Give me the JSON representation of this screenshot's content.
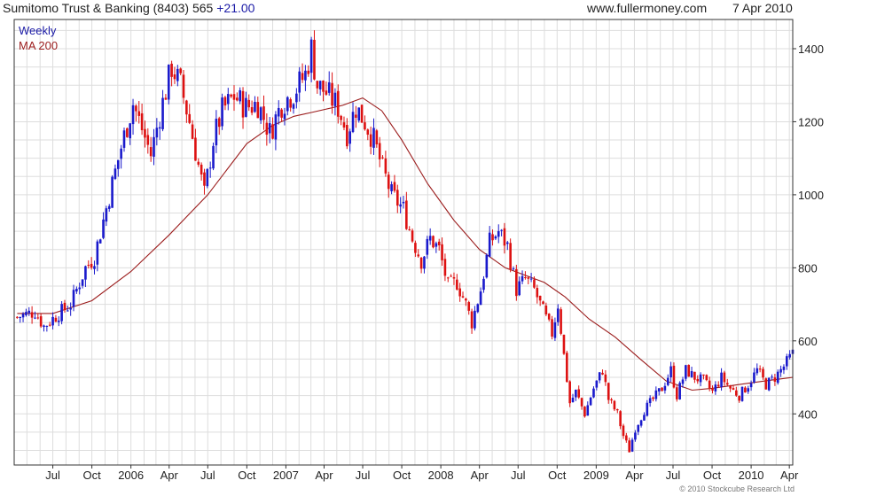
{
  "header": {
    "title": "Sumitomo Trust & Banking (8403) 565",
    "change": "+21.00",
    "website": "www.fullermoney.com",
    "date": "7 Apr 2010"
  },
  "footer": {
    "copyright": "© 2010 Stockcube Research Ltd"
  },
  "colors": {
    "up": "#1a1acc",
    "down": "#dd1111",
    "ma": "#9b1c1c",
    "grid": "#dddddd",
    "axis": "#333333"
  },
  "chart_data": {
    "type": "candlestick",
    "legend": [
      {
        "label": "Weekly",
        "color": "#1a1aa6"
      },
      {
        "label": "MA 200",
        "color": "#9b1c1c"
      }
    ],
    "ylim": [
      260,
      1480
    ],
    "y_ticks": [
      400,
      600,
      800,
      1000,
      1200,
      1400
    ],
    "x_ticks": [
      "Jul",
      "Oct",
      "2006",
      "Apr",
      "Jul",
      "Oct",
      "2007",
      "Apr",
      "Jul",
      "Oct",
      "2008",
      "Apr",
      "Jul",
      "Oct",
      "2009",
      "Apr",
      "Jul",
      "Oct",
      "2010",
      "Apr"
    ],
    "x_range": [
      "2005-04-01",
      "2010-04-09"
    ],
    "x_tick_dates": [
      "2005-07-01",
      "2005-10-01",
      "2006-01-01",
      "2006-04-01",
      "2006-07-01",
      "2006-10-01",
      "2007-01-01",
      "2007-04-01",
      "2007-07-01",
      "2007-10-01",
      "2008-01-01",
      "2008-04-01",
      "2008-07-01",
      "2008-10-01",
      "2009-01-01",
      "2009-04-01",
      "2009-07-01",
      "2009-10-01",
      "2010-01-01",
      "2010-04-01"
    ],
    "price_anchors": [
      [
        "2005-04-08",
        665
      ],
      [
        "2005-05-20",
        680
      ],
      [
        "2005-06-10",
        640
      ],
      [
        "2005-07-15",
        675
      ],
      [
        "2005-08-12",
        700
      ],
      [
        "2005-08-26",
        740
      ],
      [
        "2005-09-16",
        800
      ],
      [
        "2005-10-07",
        830
      ],
      [
        "2005-10-28",
        930
      ],
      [
        "2005-11-18",
        1030
      ],
      [
        "2005-12-09",
        1130
      ],
      [
        "2006-01-06",
        1250
      ],
      [
        "2006-01-27",
        1180
      ],
      [
        "2006-02-17",
        1110
      ],
      [
        "2006-03-10",
        1220
      ],
      [
        "2006-04-07",
        1350
      ],
      [
        "2006-04-28",
        1300
      ],
      [
        "2006-05-19",
        1200
      ],
      [
        "2006-06-09",
        1080
      ],
      [
        "2006-06-23",
        1000
      ],
      [
        "2006-07-14",
        1150
      ],
      [
        "2006-08-04",
        1230
      ],
      [
        "2006-09-01",
        1270
      ],
      [
        "2006-09-29",
        1240
      ],
      [
        "2006-10-27",
        1250
      ],
      [
        "2006-11-24",
        1170
      ],
      [
        "2006-12-22",
        1250
      ],
      [
        "2007-01-19",
        1280
      ],
      [
        "2007-02-16",
        1330
      ],
      [
        "2007-03-02",
        1400
      ],
      [
        "2007-03-16",
        1300
      ],
      [
        "2007-04-06",
        1280
      ],
      [
        "2007-05-04",
        1240
      ],
      [
        "2007-05-25",
        1170
      ],
      [
        "2007-06-15",
        1240
      ],
      [
        "2007-07-06",
        1200
      ],
      [
        "2007-07-27",
        1150
      ],
      [
        "2007-08-17",
        1070
      ],
      [
        "2007-09-07",
        1000
      ],
      [
        "2007-10-05",
        960
      ],
      [
        "2007-10-26",
        880
      ],
      [
        "2007-11-16",
        820
      ],
      [
        "2007-12-07",
        880
      ],
      [
        "2007-12-28",
        850
      ],
      [
        "2008-01-18",
        750
      ],
      [
        "2008-02-08",
        760
      ],
      [
        "2008-02-29",
        700
      ],
      [
        "2008-03-14",
        650
      ],
      [
        "2008-04-04",
        740
      ],
      [
        "2008-04-25",
        870
      ],
      [
        "2008-05-16",
        900
      ],
      [
        "2008-06-06",
        860
      ],
      [
        "2008-06-27",
        740
      ],
      [
        "2008-07-18",
        770
      ],
      [
        "2008-08-08",
        740
      ],
      [
        "2008-08-29",
        680
      ],
      [
        "2008-09-19",
        620
      ],
      [
        "2008-10-03",
        700
      ],
      [
        "2008-10-17",
        560
      ],
      [
        "2008-10-31",
        430
      ],
      [
        "2008-11-14",
        460
      ],
      [
        "2008-12-05",
        400
      ],
      [
        "2008-12-26",
        470
      ],
      [
        "2009-01-16",
        520
      ],
      [
        "2009-01-30",
        440
      ],
      [
        "2009-02-20",
        400
      ],
      [
        "2009-03-06",
        340
      ],
      [
        "2009-03-20",
        300
      ],
      [
        "2009-04-03",
        360
      ],
      [
        "2009-04-24",
        410
      ],
      [
        "2009-05-15",
        440
      ],
      [
        "2009-06-05",
        470
      ],
      [
        "2009-06-26",
        520
      ],
      [
        "2009-07-10",
        450
      ],
      [
        "2009-07-31",
        520
      ],
      [
        "2009-08-21",
        500
      ],
      [
        "2009-09-11",
        490
      ],
      [
        "2009-10-02",
        460
      ],
      [
        "2009-10-23",
        500
      ],
      [
        "2009-11-13",
        470
      ],
      [
        "2009-12-04",
        450
      ],
      [
        "2009-12-25",
        480
      ],
      [
        "2010-01-15",
        520
      ],
      [
        "2010-02-05",
        480
      ],
      [
        "2010-02-26",
        500
      ],
      [
        "2010-03-19",
        530
      ],
      [
        "2010-04-09",
        565
      ]
    ],
    "ma200_anchors": [
      [
        "2005-04-08",
        675
      ],
      [
        "2005-07-01",
        675
      ],
      [
        "2005-10-01",
        710
      ],
      [
        "2006-01-01",
        790
      ],
      [
        "2006-04-01",
        890
      ],
      [
        "2006-07-01",
        1000
      ],
      [
        "2006-10-01",
        1140
      ],
      [
        "2006-12-01",
        1190
      ],
      [
        "2007-01-20",
        1215
      ],
      [
        "2007-03-01",
        1225
      ],
      [
        "2007-05-15",
        1245
      ],
      [
        "2007-07-01",
        1265
      ],
      [
        "2007-08-15",
        1230
      ],
      [
        "2007-10-01",
        1150
      ],
      [
        "2007-12-01",
        1030
      ],
      [
        "2008-02-01",
        930
      ],
      [
        "2008-04-01",
        850
      ],
      [
        "2008-06-01",
        800
      ],
      [
        "2008-09-01",
        760
      ],
      [
        "2008-10-20",
        720
      ],
      [
        "2008-12-15",
        660
      ],
      [
        "2009-02-15",
        610
      ],
      [
        "2009-04-15",
        550
      ],
      [
        "2009-06-15",
        490
      ],
      [
        "2009-08-15",
        465
      ],
      [
        "2009-10-01",
        470
      ],
      [
        "2009-12-01",
        480
      ],
      [
        "2010-02-01",
        490
      ],
      [
        "2010-04-09",
        500
      ]
    ]
  }
}
